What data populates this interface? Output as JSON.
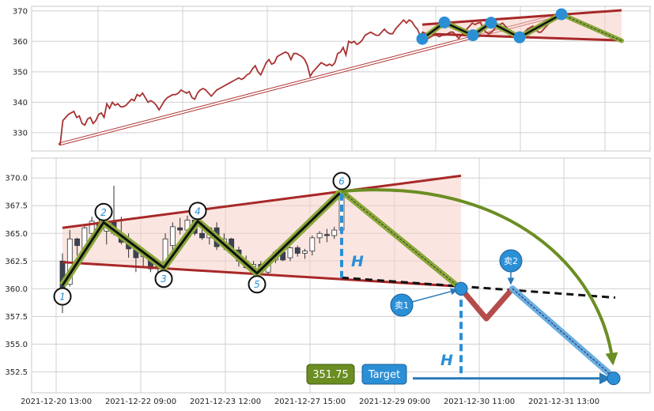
{
  "chart_data": [
    {
      "type": "line",
      "panel": "overview",
      "title": "",
      "xlabel": "",
      "ylabel": "",
      "ylim": [
        324,
        371.5
      ],
      "yticks": [
        330,
        340,
        350,
        360,
        370
      ],
      "grid": true,
      "series": [
        {
          "values": [
            326,
            334,
            335,
            336,
            336.5,
            337,
            335,
            335.5,
            333,
            332.5,
            334.5,
            335,
            333,
            334,
            336,
            336.5,
            335,
            339.5,
            338,
            340,
            339,
            339.5,
            338.5,
            338.5,
            339,
            340,
            341,
            340.5,
            342.5,
            342,
            343,
            341.5,
            340,
            340.5,
            340,
            339,
            337.5,
            339,
            340.5,
            341.5,
            342,
            342.5,
            342.5,
            343,
            344,
            343.5,
            343,
            343.5,
            341.5,
            341,
            343,
            344,
            344.5,
            344,
            343,
            342,
            343,
            344,
            344.5,
            345,
            345.5,
            346,
            346.5,
            347,
            347.5,
            348,
            347.5,
            348,
            349,
            349.5,
            351,
            352,
            350,
            349,
            351,
            353,
            354,
            352.5,
            353,
            355,
            355.5,
            356,
            356.5,
            356,
            354,
            356,
            356,
            355.5,
            355,
            354,
            352,
            348.5,
            350,
            351,
            352,
            353,
            352.5,
            352,
            352.5,
            352,
            353,
            356,
            356.5,
            358,
            355.5,
            360,
            359.5,
            360,
            359,
            359.5,
            360.5,
            362,
            362.5,
            363,
            362.5,
            362,
            362,
            363,
            364,
            363,
            362.5,
            362.5,
            364,
            365,
            366,
            367,
            366,
            367,
            366.5,
            365,
            364,
            362,
            363,
            362.5,
            361,
            361.5,
            362,
            362,
            361.5,
            362,
            362,
            362.5,
            363,
            363,
            362,
            361,
            362,
            363,
            364,
            365,
            366,
            365.5,
            366,
            366.2,
            364,
            363,
            362.5,
            363,
            364,
            365,
            365.5,
            366,
            365,
            364,
            363,
            362,
            362.5,
            363,
            362.5,
            363,
            364,
            364.5,
            365,
            364,
            363,
            363,
            364,
            365,
            366,
            366.5,
            368,
            369
          ]
        }
      ],
      "annotations": {
        "pivot_values": [
          360.8,
          366.2,
          362.0,
          366.1,
          361.3,
          368.9
        ],
        "trend_start": 326.3,
        "upper_line": [
          365.5,
          370.2
        ],
        "lower_line": [
          362.5,
          360.3
        ]
      }
    },
    {
      "type": "candlestick",
      "panel": "detail",
      "title": "",
      "xlabel": "",
      "ylabel": "",
      "ylim": [
        350.6,
        371.8
      ],
      "yticks": [
        352.5,
        355.0,
        357.5,
        360.0,
        362.5,
        365.0,
        367.5,
        370.0
      ],
      "x_tick_labels": [
        "2021-12-20 13:00",
        "2021-12-22 09:00",
        "2021-12-23 12:00",
        "2021-12-27 15:00",
        "2021-12-29 09:00",
        "2021-12-30 11:00",
        "2021-12-31 13:00"
      ],
      "grid": true,
      "candles": [
        {
          "o": 362.5,
          "h": 363.2,
          "l": 357.8,
          "c": 359.5
        },
        {
          "o": 360.4,
          "h": 365.3,
          "l": 360.2,
          "c": 364.5
        },
        {
          "o": 364.5,
          "h": 364.6,
          "l": 363.0,
          "c": 363.9
        },
        {
          "o": 363.6,
          "h": 365.8,
          "l": 363.5,
          "c": 365.5
        },
        {
          "o": 365.0,
          "h": 366.5,
          "l": 364.8,
          "c": 366.1
        },
        {
          "o": 366.0,
          "h": 366.5,
          "l": 365.0,
          "c": 365.2
        },
        {
          "o": 365.2,
          "h": 366.2,
          "l": 364.0,
          "c": 366.0
        },
        {
          "o": 366.0,
          "h": 369.3,
          "l": 364.8,
          "c": 365.0
        },
        {
          "o": 365.0,
          "h": 366.5,
          "l": 364.0,
          "c": 364.2
        },
        {
          "o": 364.2,
          "h": 365.0,
          "l": 362.8,
          "c": 363.6
        },
        {
          "o": 363.6,
          "h": 364.0,
          "l": 361.5,
          "c": 362.8
        },
        {
          "o": 362.9,
          "h": 363.5,
          "l": 362.0,
          "c": 363.3
        },
        {
          "o": 363.0,
          "h": 363.2,
          "l": 361.5,
          "c": 361.8
        },
        {
          "o": 361.8,
          "h": 362.5,
          "l": 361.3,
          "c": 362.0
        },
        {
          "o": 362.0,
          "h": 365.0,
          "l": 361.8,
          "c": 364.5
        },
        {
          "o": 363.9,
          "h": 366.0,
          "l": 363.5,
          "c": 365.6
        },
        {
          "o": 365.5,
          "h": 366.4,
          "l": 364.9,
          "c": 365.3
        },
        {
          "o": 365.3,
          "h": 366.6,
          "l": 365.0,
          "c": 366.2
        },
        {
          "o": 366.2,
          "h": 366.5,
          "l": 364.8,
          "c": 365.0
        },
        {
          "o": 365.0,
          "h": 365.8,
          "l": 364.4,
          "c": 364.6
        },
        {
          "o": 364.6,
          "h": 365.6,
          "l": 364.0,
          "c": 365.5
        },
        {
          "o": 365.5,
          "h": 366.0,
          "l": 363.5,
          "c": 363.8
        },
        {
          "o": 363.8,
          "h": 365.0,
          "l": 363.5,
          "c": 364.5
        },
        {
          "o": 364.5,
          "h": 364.6,
          "l": 363.2,
          "c": 363.5
        },
        {
          "o": 363.5,
          "h": 363.8,
          "l": 362.0,
          "c": 362.5
        },
        {
          "o": 362.5,
          "h": 363.0,
          "l": 361.8,
          "c": 361.9
        },
        {
          "o": 362.0,
          "h": 362.5,
          "l": 361.2,
          "c": 362.2
        },
        {
          "o": 362.2,
          "h": 362.5,
          "l": 361.3,
          "c": 361.5
        },
        {
          "o": 361.5,
          "h": 362.8,
          "l": 361.3,
          "c": 362.6
        },
        {
          "o": 362.6,
          "h": 363.5,
          "l": 362.3,
          "c": 363.3
        },
        {
          "o": 363.3,
          "h": 363.6,
          "l": 362.5,
          "c": 362.6
        },
        {
          "o": 362.8,
          "h": 363.8,
          "l": 362.5,
          "c": 363.7
        },
        {
          "o": 363.7,
          "h": 363.9,
          "l": 362.9,
          "c": 363.2
        },
        {
          "o": 363.2,
          "h": 363.6,
          "l": 362.7,
          "c": 363.4
        },
        {
          "o": 363.4,
          "h": 364.8,
          "l": 363.0,
          "c": 364.6
        },
        {
          "o": 364.6,
          "h": 365.2,
          "l": 364.1,
          "c": 365.0
        },
        {
          "o": 364.9,
          "h": 365.4,
          "l": 364.2,
          "c": 364.8
        },
        {
          "o": 364.8,
          "h": 365.6,
          "l": 364.5,
          "c": 365.3
        },
        {
          "o": 365.3,
          "h": 368.6,
          "l": 364.9,
          "c": 368.3
        }
      ],
      "pattern": {
        "pivots": [
          {
            "label": "1",
            "value": 360.3
          },
          {
            "label": "2",
            "value": 366.0
          },
          {
            "label": "3",
            "value": 361.9
          },
          {
            "label": "4",
            "value": 366.1
          },
          {
            "label": "5",
            "value": 361.4
          },
          {
            "label": "6",
            "value": 368.8
          }
        ],
        "upper_line": [
          365.5,
          370.2
        ],
        "lower_line": [
          362.4,
          360.2
        ],
        "projection": [
          368.8,
          360.0,
          357.3,
          360.0,
          352.0
        ],
        "height_label": "H",
        "sell1_label": "卖1",
        "sell2_label": "卖2",
        "target_label": "Target",
        "target_value": "351.75"
      }
    }
  ]
}
